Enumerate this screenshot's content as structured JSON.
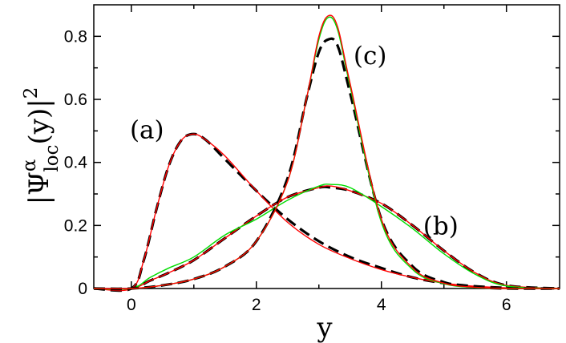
{
  "chart_data": {
    "type": "line",
    "xlabel": "y",
    "ylabel": {
      "prefix": "|Ψ",
      "superscript": "α",
      "subscript": "loc",
      "suffix": "(y)|",
      "power": "2"
    },
    "xlim": [
      -0.6,
      6.85
    ],
    "ylim": [
      0,
      0.9
    ],
    "xticks": [
      0,
      2,
      4,
      6
    ],
    "xtick_labels": [
      "0",
      "2",
      "4",
      "6"
    ],
    "yticks": [
      0,
      0.2,
      0.4,
      0.6,
      0.8
    ],
    "ytick_labels": [
      "0",
      "0.2",
      "0.4",
      "0.6",
      "0.8"
    ],
    "grid": false,
    "annotations": [
      {
        "text": "(a)",
        "x": 0.25,
        "y": 0.505
      },
      {
        "text": "(b)",
        "x": 4.95,
        "y": 0.2
      },
      {
        "text": "(c)",
        "x": 3.82,
        "y": 0.74
      }
    ],
    "series": [
      {
        "group": "a",
        "color": "#000000",
        "style": "dashed",
        "x": [
          -0.6,
          0.0,
          0.2,
          0.4,
          0.6,
          0.8,
          1.0,
          1.2,
          1.5,
          2.0,
          2.5,
          3.0,
          3.5,
          4.0,
          4.5,
          5.0,
          5.5,
          6.0,
          6.5,
          6.85
        ],
        "y": [
          0,
          0,
          0.09,
          0.25,
          0.39,
          0.47,
          0.49,
          0.47,
          0.41,
          0.31,
          0.22,
          0.15,
          0.1,
          0.065,
          0.035,
          0.017,
          0.007,
          0.002,
          0.0,
          0
        ]
      },
      {
        "group": "a",
        "color": "#ff0000",
        "style": "solid",
        "x": [
          -0.6,
          0.0,
          0.2,
          0.4,
          0.6,
          0.8,
          1.0,
          1.2,
          1.5,
          2.0,
          2.5,
          3.0,
          3.5,
          4.0,
          4.5,
          5.0,
          5.5,
          6.0,
          6.5,
          6.85
        ],
        "y": [
          0,
          0,
          0.09,
          0.25,
          0.39,
          0.47,
          0.49,
          0.47,
          0.42,
          0.31,
          0.21,
          0.14,
          0.095,
          0.06,
          0.035,
          0.017,
          0.007,
          0.002,
          0.0,
          0
        ]
      },
      {
        "group": "b",
        "color": "#000000",
        "style": "dashed",
        "x": [
          -0.6,
          0.0,
          0.3,
          0.6,
          1.0,
          1.5,
          2.0,
          2.5,
          3.0,
          3.2,
          3.5,
          4.0,
          4.5,
          5.0,
          5.5,
          6.0,
          6.85
        ],
        "y": [
          0,
          0,
          0.025,
          0.05,
          0.09,
          0.16,
          0.23,
          0.29,
          0.32,
          0.32,
          0.31,
          0.27,
          0.2,
          0.12,
          0.05,
          0.01,
          0
        ]
      },
      {
        "group": "b",
        "color": "#ff0000",
        "style": "solid",
        "x": [
          -0.6,
          0.0,
          0.3,
          0.6,
          1.0,
          1.5,
          2.0,
          2.5,
          3.0,
          3.2,
          3.5,
          4.0,
          4.5,
          5.0,
          5.5,
          6.0,
          6.85
        ],
        "y": [
          0,
          0,
          0.025,
          0.05,
          0.09,
          0.16,
          0.23,
          0.29,
          0.32,
          0.325,
          0.31,
          0.27,
          0.2,
          0.12,
          0.05,
          0.01,
          0
        ]
      },
      {
        "group": "b",
        "color": "#00dd00",
        "style": "solid",
        "x": [
          -0.6,
          0.0,
          0.3,
          0.6,
          1.0,
          1.5,
          2.0,
          2.5,
          3.0,
          3.2,
          3.5,
          4.0,
          4.5,
          5.0,
          5.5,
          6.0,
          6.85
        ],
        "y": [
          0,
          0,
          0.035,
          0.065,
          0.1,
          0.17,
          0.22,
          0.28,
          0.325,
          0.33,
          0.32,
          0.26,
          0.19,
          0.11,
          0.045,
          0.008,
          0
        ]
      },
      {
        "group": "c",
        "color": "#000000",
        "style": "dashed",
        "x": [
          -0.6,
          0.0,
          0.5,
          1.0,
          1.5,
          2.0,
          2.5,
          2.8,
          3.0,
          3.15,
          3.3,
          3.5,
          4.0,
          4.5,
          5.0,
          5.5,
          6.0,
          6.85
        ],
        "y": [
          0,
          0,
          0.01,
          0.03,
          0.07,
          0.15,
          0.35,
          0.6,
          0.75,
          0.79,
          0.77,
          0.62,
          0.22,
          0.07,
          0.02,
          0.005,
          0.0,
          0
        ]
      },
      {
        "group": "c",
        "color": "#00dd00",
        "style": "solid",
        "x": [
          -0.6,
          0.0,
          0.5,
          1.0,
          1.5,
          2.0,
          2.5,
          2.8,
          3.0,
          3.15,
          3.3,
          3.5,
          4.0,
          4.5,
          5.0,
          5.5,
          6.0,
          6.85
        ],
        "y": [
          0,
          0,
          0.01,
          0.03,
          0.07,
          0.15,
          0.34,
          0.6,
          0.79,
          0.86,
          0.82,
          0.64,
          0.21,
          0.06,
          0.015,
          0.003,
          0.0,
          0
        ]
      },
      {
        "group": "c",
        "color": "#ff0000",
        "style": "solid",
        "x": [
          -0.6,
          0.0,
          0.5,
          1.0,
          1.5,
          2.0,
          2.5,
          2.8,
          3.0,
          3.15,
          3.3,
          3.5,
          4.0,
          4.5,
          5.0,
          5.5,
          6.0,
          6.85
        ],
        "y": [
          0,
          0,
          0.01,
          0.03,
          0.07,
          0.15,
          0.34,
          0.6,
          0.8,
          0.865,
          0.83,
          0.65,
          0.22,
          0.065,
          0.017,
          0.004,
          0.0,
          0
        ]
      }
    ]
  }
}
